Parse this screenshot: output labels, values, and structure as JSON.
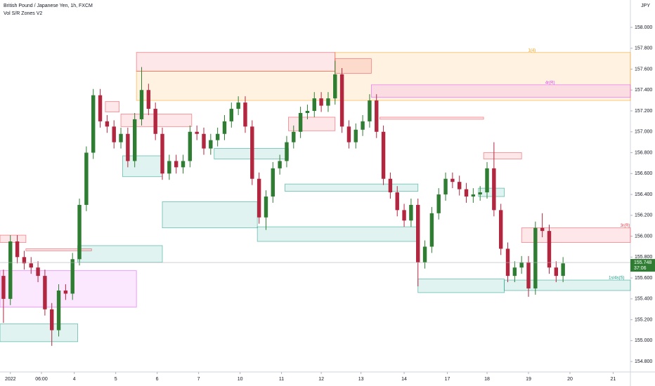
{
  "chart_data": {
    "type": "candlestick",
    "title": "British Pound / Japanese Yen, 1h, FXCM",
    "subtitle": "Vol S/R Zones V2",
    "currency": "JPY",
    "up_color": "#2e7d32",
    "down_color": "#b2263f",
    "x": [
      2,
      6,
      10,
      14,
      18,
      22,
      26,
      30,
      34,
      38,
      42,
      46,
      50,
      54,
      58,
      62,
      66,
      70,
      74,
      78,
      82,
      86,
      90,
      94,
      98,
      102,
      106,
      110,
      114,
      118,
      122,
      126,
      130,
      134,
      138,
      142,
      146,
      150,
      154,
      158,
      162,
      166,
      170,
      174,
      178,
      182,
      186,
      190,
      194,
      198,
      202,
      206,
      210,
      214,
      218,
      222,
      226,
      230,
      234,
      238,
      242,
      246,
      250,
      254,
      258,
      262,
      266,
      270,
      274,
      278,
      282,
      286,
      290,
      294,
      298,
      302,
      306,
      310,
      314,
      318,
      322,
      326
    ],
    "open": [
      155.62,
      155.4,
      155.95,
      155.8,
      155.74,
      155.7,
      155.62,
      155.3,
      155.1,
      155.48,
      155.45,
      155.78,
      156.3,
      156.8,
      157.35,
      157.1,
      157.05,
      156.9,
      156.98,
      156.72,
      157.12,
      157.4,
      157.22,
      156.98,
      156.6,
      156.72,
      156.66,
      156.72,
      157.0,
      156.98,
      156.84,
      156.92,
      156.98,
      157.1,
      157.22,
      157.28,
      157.05,
      156.55,
      156.18,
      156.38,
      156.65,
      156.72,
      156.9,
      157.0,
      157.18,
      157.2,
      157.32,
      157.25,
      157.32,
      157.55,
      157.05,
      156.9,
      157.02,
      157.1,
      157.3,
      157.0,
      156.55,
      156.42,
      156.25,
      156.15,
      156.3,
      155.75,
      155.9,
      156.22,
      156.4,
      156.55,
      156.52,
      156.45,
      156.38,
      156.4,
      156.42,
      156.65,
      156.25,
      155.88,
      155.62,
      155.7,
      155.75,
      155.5,
      156.08,
      156.05,
      155.7,
      155.62
    ],
    "high": [
      155.68,
      156.01,
      156.01,
      155.86,
      155.8,
      155.76,
      155.68,
      155.36,
      155.54,
      155.54,
      155.84,
      156.36,
      156.86,
      157.41,
      157.41,
      157.16,
      157.11,
      157.04,
      157.04,
      157.18,
      157.62,
      157.46,
      157.28,
      157.04,
      156.78,
      156.78,
      156.78,
      157.06,
      157.06,
      157.04,
      156.98,
      157.04,
      157.16,
      157.28,
      157.34,
      157.34,
      157.11,
      156.61,
      156.44,
      156.71,
      156.78,
      156.96,
      157.06,
      157.24,
      157.26,
      157.38,
      157.38,
      157.38,
      157.68,
      157.61,
      157.11,
      157.08,
      157.16,
      157.36,
      157.36,
      157.06,
      156.61,
      156.48,
      156.31,
      156.36,
      156.36,
      155.96,
      156.28,
      156.46,
      156.61,
      156.61,
      156.58,
      156.51,
      156.46,
      156.48,
      156.71,
      156.9,
      156.31,
      155.94,
      155.76,
      155.81,
      155.81,
      156.14,
      156.22,
      156.11,
      155.76,
      155.8
    ],
    "low": [
      155.17,
      155.34,
      155.74,
      155.68,
      155.64,
      155.56,
      155.24,
      154.95,
      155.04,
      155.39,
      155.39,
      155.72,
      156.24,
      156.74,
      157.04,
      156.99,
      156.84,
      156.84,
      156.66,
      156.66,
      157.06,
      157.16,
      156.92,
      156.54,
      156.54,
      156.6,
      156.6,
      156.66,
      156.92,
      156.78,
      156.78,
      156.86,
      156.92,
      157.04,
      157.16,
      156.99,
      156.49,
      156.12,
      156.06,
      156.32,
      156.59,
      156.66,
      156.84,
      156.94,
      157.12,
      157.14,
      157.19,
      157.19,
      157.26,
      156.99,
      156.84,
      156.84,
      156.96,
      157.04,
      156.94,
      156.49,
      156.36,
      156.19,
      156.09,
      156.09,
      155.52,
      155.69,
      155.84,
      156.16,
      156.34,
      156.46,
      156.39,
      156.32,
      156.32,
      156.34,
      156.36,
      156.19,
      155.82,
      155.56,
      155.56,
      155.64,
      155.42,
      155.44,
      155.99,
      155.64,
      155.56,
      155.56
    ],
    "close": [
      155.4,
      155.95,
      155.8,
      155.74,
      155.7,
      155.62,
      155.3,
      155.1,
      155.48,
      155.45,
      155.78,
      156.3,
      156.8,
      157.35,
      157.1,
      157.05,
      156.9,
      156.98,
      156.72,
      157.12,
      157.4,
      157.22,
      156.98,
      156.6,
      156.72,
      156.66,
      156.72,
      157.0,
      156.98,
      156.84,
      156.92,
      156.98,
      157.1,
      157.22,
      157.28,
      157.05,
      156.55,
      156.18,
      156.38,
      156.65,
      156.72,
      156.9,
      157.0,
      157.18,
      157.2,
      157.32,
      157.25,
      157.32,
      157.55,
      157.05,
      156.9,
      157.02,
      157.1,
      157.3,
      157.0,
      156.55,
      156.42,
      156.25,
      156.15,
      156.3,
      155.75,
      155.9,
      156.22,
      156.4,
      156.55,
      156.52,
      156.45,
      156.38,
      156.4,
      156.42,
      156.65,
      156.25,
      155.88,
      155.62,
      155.7,
      155.75,
      155.5,
      156.08,
      156.05,
      155.7,
      155.62,
      155.74
    ],
    "zones": [
      {
        "x": [
          79,
          194
        ],
        "y": [
          157.58,
          157.3
        ],
        "color": "#ff9800"
      },
      {
        "x": [
          194,
          365
        ],
        "y": [
          157.76,
          157.3
        ],
        "color": "#ff9800",
        "label": "1(4)"
      },
      {
        "x": [
          79,
          194
        ],
        "y": [
          157.76,
          157.58
        ],
        "color": "#f23645"
      },
      {
        "x": [
          194,
          215
        ],
        "y": [
          157.7,
          157.56
        ],
        "color": "#f23645"
      },
      {
        "x": [
          215,
          365
        ],
        "y": [
          157.45,
          157.33
        ],
        "color": "#e040fb",
        "label": "4r(R)"
      },
      {
        "x": [
          61,
          69
        ],
        "y": [
          157.29,
          157.19
        ],
        "color": "#f23645"
      },
      {
        "x": [
          70,
          111
        ],
        "y": [
          157.17,
          157.05
        ],
        "color": "#f23645"
      },
      {
        "x": [
          167,
          194
        ],
        "y": [
          157.14,
          157.01
        ],
        "color": "#f23645"
      },
      {
        "x": [
          220,
          280
        ],
        "y": [
          157.14,
          157.12
        ],
        "color": "#f23645"
      },
      {
        "x": [
          280,
          302
        ],
        "y": [
          156.8,
          156.74
        ],
        "color": "#f23645"
      },
      {
        "x": [
          302,
          365
        ],
        "y": [
          156.08,
          155.94
        ],
        "color": "#f23645",
        "label": "3r(R)"
      },
      {
        "x": [
          0,
          15
        ],
        "y": [
          156.01,
          155.94
        ],
        "color": "#f23645"
      },
      {
        "x": [
          15,
          53
        ],
        "y": [
          155.88,
          155.86
        ],
        "color": "#f23645"
      },
      {
        "x": [
          0,
          79
        ],
        "y": [
          155.67,
          155.32
        ],
        "color": "#e040fb"
      },
      {
        "x": [
          0,
          45
        ],
        "y": [
          155.16,
          154.99
        ],
        "color": "#089981"
      },
      {
        "x": [
          45,
          94
        ],
        "y": [
          155.91,
          155.75
        ],
        "color": "#089981"
      },
      {
        "x": [
          71,
          94
        ],
        "y": [
          156.77,
          156.57
        ],
        "color": "#089981"
      },
      {
        "x": [
          94,
          149
        ],
        "y": [
          156.33,
          156.08
        ],
        "color": "#089981"
      },
      {
        "x": [
          124,
          167
        ],
        "y": [
          156.84,
          156.74
        ],
        "color": "#089981"
      },
      {
        "x": [
          165,
          242
        ],
        "y": [
          156.5,
          156.43
        ],
        "color": "#089981"
      },
      {
        "x": [
          149,
          242
        ],
        "y": [
          156.09,
          155.95
        ],
        "color": "#089981"
      },
      {
        "x": [
          242,
          292
        ],
        "y": [
          155.59,
          155.46
        ],
        "color": "#089981"
      },
      {
        "x": [
          292,
          365
        ],
        "y": [
          155.58,
          155.48
        ],
        "color": "#089981",
        "label": "1s/4s(S)"
      },
      {
        "x": [
          277,
          292
        ],
        "y": [
          156.46,
          156.38
        ],
        "color": "#089981"
      }
    ],
    "last_price": 155.748,
    "countdown": "37:06",
    "last_color": "#2e7d32",
    "xlim": [
      0,
      365
    ],
    "xticks": [
      {
        "value": 6,
        "label": "2022"
      },
      {
        "value": 24,
        "label": "06:00"
      },
      {
        "value": 43,
        "label": "4"
      },
      {
        "value": 67,
        "label": "5"
      },
      {
        "value": 91,
        "label": "6"
      },
      {
        "value": 115,
        "label": "7"
      },
      {
        "value": 139,
        "label": "10"
      },
      {
        "value": 163,
        "label": "11"
      },
      {
        "value": 186,
        "label": "12"
      },
      {
        "value": 209,
        "label": "13"
      },
      {
        "value": 234,
        "label": "14"
      },
      {
        "value": 259,
        "label": "17"
      },
      {
        "value": 282,
        "label": "18"
      },
      {
        "value": 306,
        "label": "19"
      },
      {
        "value": 330,
        "label": "20"
      },
      {
        "value": 355,
        "label": "21"
      }
    ],
    "ylim": [
      154.7,
      158.262
    ],
    "yticks": [
      {
        "value": 158,
        "label": "158.000"
      },
      {
        "value": 157.8,
        "label": "157.800"
      },
      {
        "value": 157.6,
        "label": "157.600"
      },
      {
        "value": 157.4,
        "label": "157.400"
      },
      {
        "value": 157.2,
        "label": "157.200"
      },
      {
        "value": 157,
        "label": "157.000"
      },
      {
        "value": 156.8,
        "label": "156.800"
      },
      {
        "value": 156.6,
        "label": "156.600"
      },
      {
        "value": 156.4,
        "label": "156.400"
      },
      {
        "value": 156.2,
        "label": "156.200"
      },
      {
        "value": 156,
        "label": "156.000"
      },
      {
        "value": 155.8,
        "label": "155.800"
      },
      {
        "value": 155.6,
        "label": "155.600"
      },
      {
        "value": 155.4,
        "label": "155.400"
      },
      {
        "value": 155.2,
        "label": "155.200"
      },
      {
        "value": 155,
        "label": "155.000"
      },
      {
        "value": 154.8,
        "label": "154.800"
      }
    ]
  }
}
